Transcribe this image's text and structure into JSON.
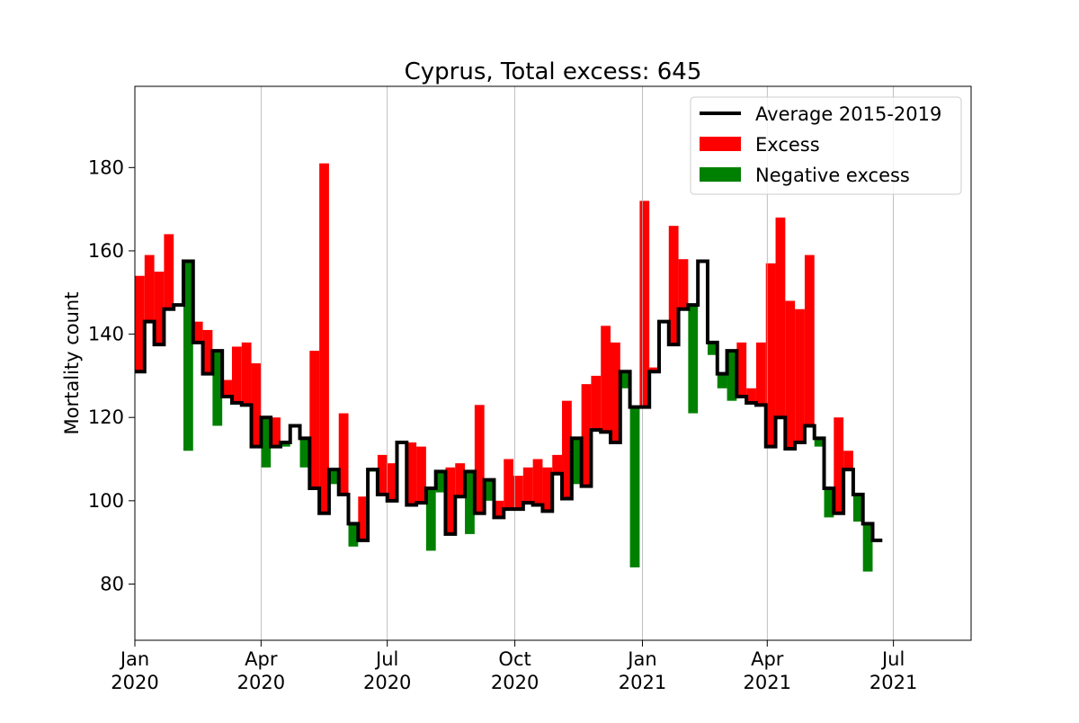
{
  "chart_data": {
    "type": "bar",
    "title": "Cyprus, Total excess: 645",
    "xlabel": "",
    "ylabel": "Mortality count",
    "ylim": [
      66.5,
      199.5
    ],
    "yticks": [
      80,
      100,
      120,
      140,
      160,
      180
    ],
    "xlim": [
      "2020-01-01",
      "2021-08-26"
    ],
    "xticks": [
      {
        "date": "2020-01-01",
        "label": [
          "Jan",
          "2020"
        ]
      },
      {
        "date": "2020-04-01",
        "label": [
          "Apr",
          "2020"
        ]
      },
      {
        "date": "2020-07-01",
        "label": [
          "Jul",
          "2020"
        ]
      },
      {
        "date": "2020-10-01",
        "label": [
          "Oct",
          "2020"
        ]
      },
      {
        "date": "2021-01-01",
        "label": [
          "Jan",
          "2021"
        ]
      },
      {
        "date": "2021-04-01",
        "label": [
          "Apr",
          "2021"
        ]
      },
      {
        "date": "2021-07-01",
        "label": [
          "Jul",
          "2021"
        ]
      }
    ],
    "grid": "x",
    "legend_position": "top-right",
    "colors": {
      "average": "#000000",
      "excess": "#ff0000",
      "negative": "#008000"
    },
    "series": [
      {
        "name": "Average 2015-2019",
        "type": "step",
        "values": [
          131,
          143,
          137.5,
          146,
          147,
          157.5,
          138,
          130.5,
          136,
          125,
          123.5,
          123,
          113,
          120,
          113,
          114,
          118,
          115,
          103,
          97,
          107.5,
          101.5,
          94.5,
          90.5,
          107.5,
          101.5,
          100,
          114,
          99,
          99.5,
          103,
          107,
          92,
          101,
          107,
          97,
          105,
          96,
          98,
          98,
          99.5,
          99,
          97.5,
          106.5,
          100.5,
          115,
          103.5,
          117,
          116.5,
          114,
          131,
          122.5,
          122.5,
          131,
          143,
          137.5,
          146,
          147,
          157.5,
          138,
          130.5,
          136,
          125,
          123.5,
          123,
          113,
          120,
          112.5,
          114,
          118,
          115,
          103,
          97,
          107.5,
          101.5,
          94.5,
          90.5
        ]
      },
      {
        "name": "Excess"
      },
      {
        "name": "Negative excess"
      }
    ],
    "week_start": "2020-01-01",
    "observed": [
      154,
      159,
      155,
      164,
      147,
      112,
      143,
      141,
      118,
      129,
      137,
      138,
      133,
      108,
      120,
      113,
      118,
      108,
      136,
      181,
      104,
      121,
      89,
      101,
      107,
      111,
      109,
      114,
      114,
      113,
      88,
      102,
      108,
      109,
      92,
      123,
      100,
      100,
      110,
      106,
      108,
      110,
      108,
      111,
      124,
      104,
      128,
      130,
      142,
      138,
      127,
      84,
      172,
      132,
      143,
      166,
      158,
      121,
      157.5,
      135,
      127,
      124,
      138,
      127,
      138,
      157,
      168,
      148,
      146,
      159,
      113,
      96,
      120,
      112,
      95,
      83
    ]
  }
}
